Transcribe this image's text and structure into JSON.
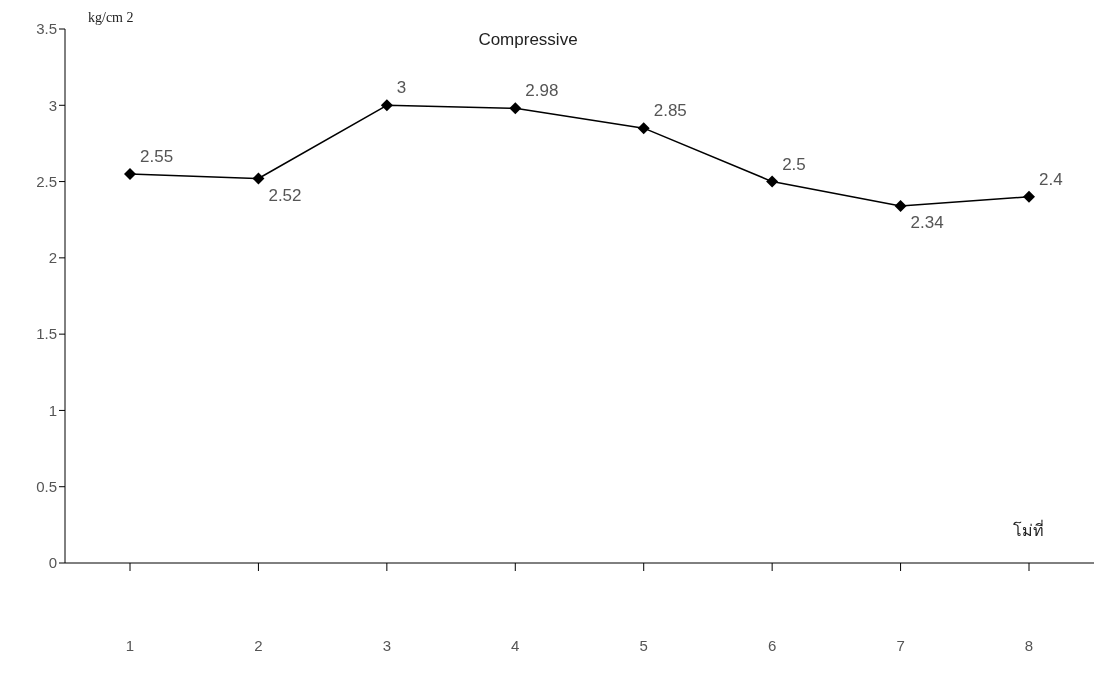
{
  "chart_data": {
    "type": "line",
    "title": "Compressive",
    "ylabel": "kg/cm 2",
    "xlabel": "โม่ที่",
    "categories": [
      "1",
      "2",
      "3",
      "4",
      "5",
      "6",
      "7",
      "8"
    ],
    "series": [
      {
        "color": "#000000",
        "values": [
          2.55,
          2.52,
          3,
          2.98,
          2.85,
          2.5,
          2.34,
          2.4
        ]
      }
    ],
    "ylim": [
      0,
      3.5
    ],
    "yticks": [
      0,
      0.5,
      1,
      1.5,
      2,
      2.5,
      3,
      3.5
    ],
    "data_labels": true,
    "marker": "diamond",
    "line_style": "solid",
    "grid": false,
    "legend": false
  }
}
